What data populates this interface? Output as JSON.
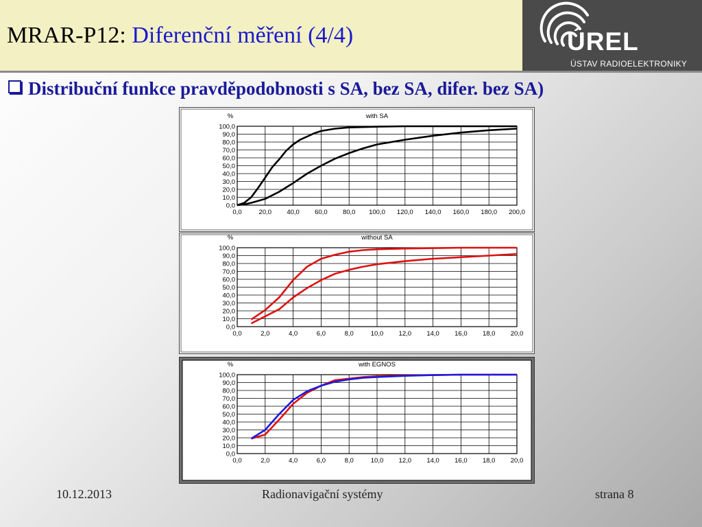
{
  "slide": {
    "title_prefix": "MRAR-P12: ",
    "title_main": "Diferenční měření (4/4)",
    "bullet": "Distribuční funkce pravděpodobnosti s SA, bez SA,  difer. bez SA)"
  },
  "logo": {
    "name": "ÚREL",
    "subtitle": "ÚSTAV RADIOELEKTRONIKY"
  },
  "footer": {
    "date": "10.12.2013",
    "course": "Radionavigační systémy",
    "page": "strana 8"
  },
  "chart_data": [
    {
      "type": "line",
      "title": "with SA",
      "ylabel": "%",
      "xlim": [
        0,
        200
      ],
      "ylim": [
        0,
        100
      ],
      "x_ticks": [
        "0,0",
        "20,0",
        "40,0",
        "60,0",
        "80,0",
        "100,0",
        "120,0",
        "140,0",
        "160,0",
        "180,0",
        "200,0"
      ],
      "y_ticks": [
        "0,0",
        "10,0",
        "20,0",
        "30,0",
        "40,0",
        "50,0",
        "60,0",
        "70,0",
        "80,0",
        "90,0",
        "100,0"
      ],
      "grid": true,
      "series": [
        {
          "color": "#000000",
          "x": [
            0,
            5,
            10,
            15,
            20,
            25,
            30,
            35,
            40,
            45,
            50,
            55,
            60,
            70,
            80,
            90,
            100,
            120,
            140,
            160,
            180,
            200
          ],
          "y": [
            0,
            3,
            10,
            22,
            35,
            48,
            58,
            69,
            77,
            83,
            87,
            91,
            94,
            97,
            98.5,
            99,
            99.5,
            100,
            100,
            100,
            100,
            100
          ]
        },
        {
          "color": "#000000",
          "x": [
            0,
            5,
            10,
            20,
            30,
            40,
            50,
            60,
            70,
            80,
            90,
            100,
            120,
            140,
            160,
            180,
            200
          ],
          "y": [
            0,
            1,
            3,
            8,
            17,
            28,
            40,
            50,
            59,
            66,
            72,
            77,
            83,
            88,
            92,
            95,
            97
          ]
        }
      ]
    },
    {
      "type": "line",
      "title": "without SA",
      "ylabel": "%",
      "xlim": [
        0,
        20
      ],
      "ylim": [
        0,
        100
      ],
      "x_ticks": [
        "0,0",
        "2,0",
        "4,0",
        "6,0",
        "8,0",
        "10,0",
        "12,0",
        "14,0",
        "16,0",
        "18,0",
        "20,0"
      ],
      "y_ticks": [
        "0,0",
        "10,0",
        "20,0",
        "30,0",
        "40,0",
        "50,0",
        "60,0",
        "70,0",
        "80,0",
        "90,0",
        "100,0"
      ],
      "grid": true,
      "series": [
        {
          "color": "#e01010",
          "x": [
            1,
            2,
            3,
            4,
            5,
            6,
            7,
            8,
            9,
            10,
            12,
            14,
            16,
            18,
            20
          ],
          "y": [
            9,
            21,
            37,
            59,
            76,
            86,
            91,
            95,
            97,
            98,
            99,
            99.5,
            100,
            100,
            100
          ]
        },
        {
          "color": "#e01010",
          "x": [
            1,
            2,
            3,
            4,
            5,
            6,
            7,
            8,
            9,
            10,
            12,
            14,
            16,
            18,
            20
          ],
          "y": [
            4,
            13,
            22,
            37,
            49,
            59,
            67,
            72,
            76,
            79,
            83,
            86,
            88,
            90,
            92
          ]
        }
      ]
    },
    {
      "type": "line",
      "title": "with EGNOS",
      "ylabel": "%",
      "xlim": [
        0,
        20
      ],
      "ylim": [
        0,
        100
      ],
      "x_ticks": [
        "0,0",
        "2,0",
        "4,0",
        "6,0",
        "8,0",
        "10,0",
        "12,0",
        "14,0",
        "16,0",
        "18,0",
        "20,0"
      ],
      "y_ticks": [
        "0,0",
        "10,0",
        "20,0",
        "30,0",
        "40,0",
        "50,0",
        "60,0",
        "70,0",
        "80,0",
        "90,0",
        "100,0"
      ],
      "grid": true,
      "series": [
        {
          "color": "#e01010",
          "x": [
            1,
            2,
            3,
            4,
            5,
            6,
            7,
            8,
            9,
            10,
            12,
            14,
            16,
            18,
            20
          ],
          "y": [
            19,
            24,
            43,
            63,
            77,
            86,
            93,
            95,
            97,
            98,
            99,
            99.5,
            100,
            100,
            100
          ]
        },
        {
          "color": "#1a1ae0",
          "x": [
            1,
            2,
            3,
            4,
            5,
            6,
            7,
            8,
            9,
            10,
            12,
            14,
            16,
            18,
            20
          ],
          "y": [
            19,
            30,
            50,
            68,
            79,
            86,
            91,
            94,
            96,
            97,
            98.5,
            99.5,
            100,
            100,
            100
          ]
        }
      ]
    }
  ]
}
